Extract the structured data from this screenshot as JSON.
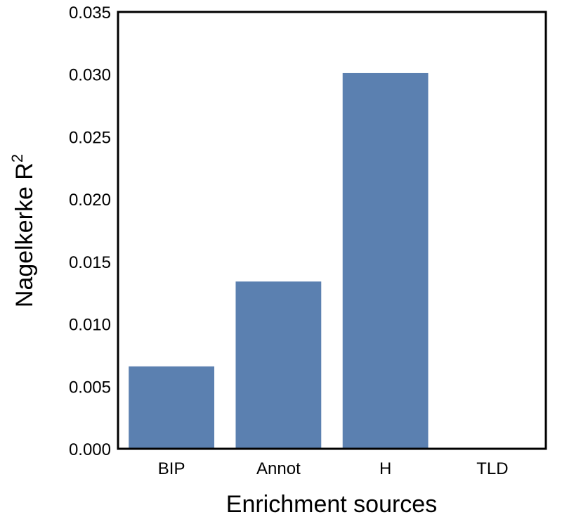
{
  "chart_data": {
    "type": "bar",
    "categories": [
      "BIP",
      "Annot",
      "H",
      "TLD"
    ],
    "values": [
      0.0066,
      0.0134,
      0.0301,
      0.0
    ],
    "xlabel": "Enrichment sources",
    "ylabel_main": "Nagelkerke R",
    "ylabel_superscript": "2",
    "ylim": [
      0.0,
      0.035
    ],
    "yticks": [
      "0.000",
      "0.005",
      "0.010",
      "0.015",
      "0.020",
      "0.025",
      "0.030",
      "0.035"
    ],
    "grid": false,
    "legend": "none",
    "bar_color": "#5b80b0"
  }
}
